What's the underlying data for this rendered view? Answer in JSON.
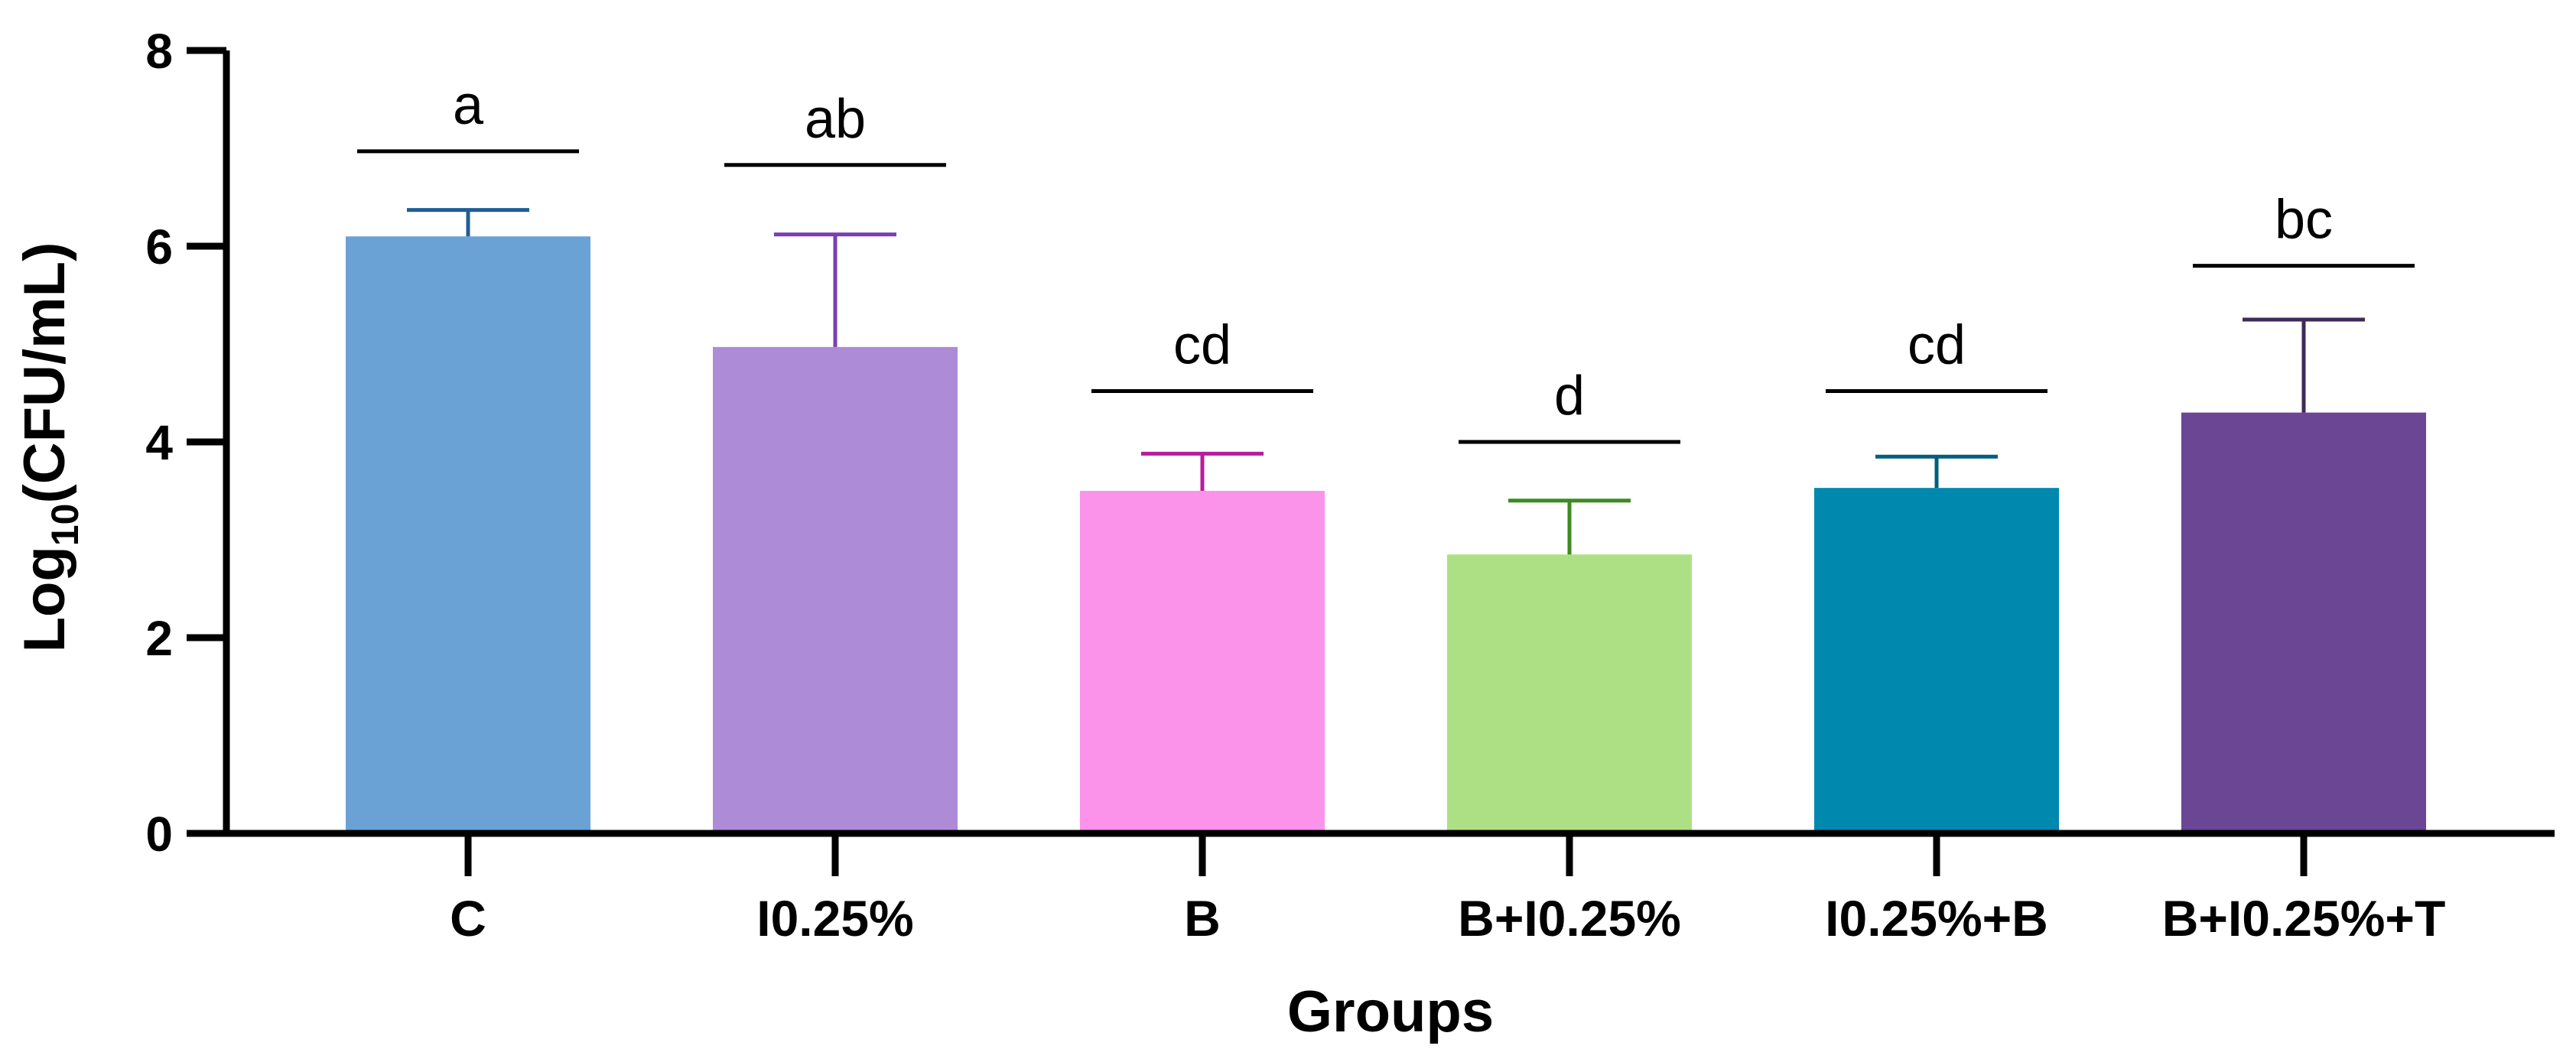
{
  "chart_data": {
    "type": "bar",
    "title": "",
    "xlabel": "Groups",
    "ylabel_main": "Log",
    "ylabel_sub": "10",
    "ylabel_rest": "(CFU/mL)",
    "ylim": [
      0,
      8
    ],
    "yticks": [
      0,
      2,
      4,
      6,
      8
    ],
    "ytick_labels": [
      "0",
      "2",
      "4",
      "6",
      "8"
    ],
    "grid": false,
    "categories": [
      "C",
      "I0.25%",
      "B",
      "B+I0.25%",
      "I0.25%+B",
      "B+I0.25%+T"
    ],
    "values": [
      6.1,
      4.97,
      3.5,
      2.85,
      3.53,
      4.3
    ],
    "error_upper": [
      6.37,
      6.12,
      3.88,
      3.4,
      3.85,
      5.25
    ],
    "significance_letters": [
      "a",
      "ab",
      "cd",
      "d",
      "cd",
      "bc"
    ],
    "significance_line_values": [
      6.97,
      6.83,
      4.52,
      4.0,
      4.52,
      5.8
    ],
    "bar_colors": [
      "#6aa2d6",
      "#ae8bd6",
      "#fc93ea",
      "#ade085",
      "#0088ae",
      "#6b4694"
    ],
    "error_colors": [
      "#1f5d95",
      "#7a3fb2",
      "#b81c9e",
      "#3e8a1f",
      "#005f7a",
      "#3f2a5a"
    ]
  }
}
